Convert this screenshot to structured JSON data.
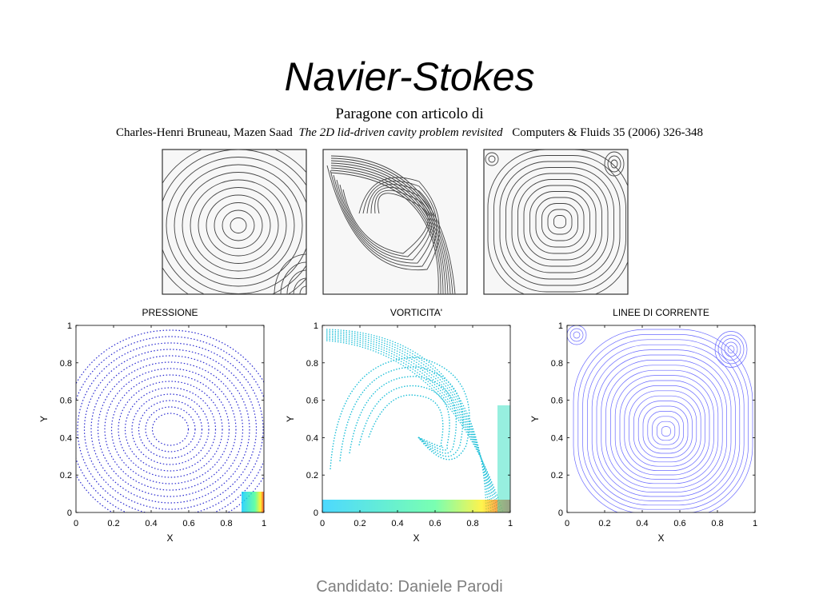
{
  "title": "Navier-Stokes",
  "subtitle": "Paragone con articolo di",
  "citation": {
    "authors": "Charles-Henri Bruneau, Mazen Saad",
    "article": "The 2D lid-driven cavity problem revisited",
    "journal": "Computers & Fluids 35 (2006) 326-348"
  },
  "plots": [
    {
      "title": "PRESSIONE",
      "xlabel": "X",
      "ylabel": "Y",
      "xlim": [
        0,
        1
      ],
      "ylim": [
        0,
        1
      ],
      "xticks": [
        0,
        0.2,
        0.4,
        0.6,
        0.8,
        1
      ],
      "yticks": [
        0,
        0.2,
        0.4,
        0.6,
        0.8,
        1
      ]
    },
    {
      "title": "VORTICITA'",
      "xlabel": "X",
      "ylabel": "Y",
      "xlim": [
        0,
        1
      ],
      "ylim": [
        0,
        1
      ],
      "xticks": [
        0,
        0.2,
        0.4,
        0.6,
        0.8,
        1
      ],
      "yticks": [
        0,
        0.2,
        0.4,
        0.6,
        0.8,
        1
      ]
    },
    {
      "title": "LINEE DI CORRENTE",
      "xlabel": "X",
      "ylabel": "Y",
      "xlim": [
        0,
        1
      ],
      "ylim": [
        0,
        1
      ],
      "xticks": [
        0,
        0.2,
        0.4,
        0.6,
        0.8,
        1
      ],
      "yticks": [
        0,
        0.2,
        0.4,
        0.6,
        0.8,
        1
      ]
    }
  ],
  "footer": "Candidato: Daniele Parodi"
}
